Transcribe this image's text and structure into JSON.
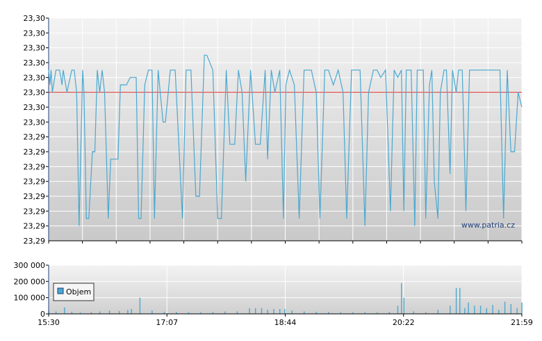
{
  "chart_data": [
    {
      "type": "line",
      "name": "price-chart",
      "ylim": [
        23.28,
        23.31
      ],
      "y_tick_labels": [
        "23,30",
        "23,30",
        "23,30",
        "23,30",
        "23,30",
        "23,30",
        "23,30",
        "23,30",
        "23,29",
        "23,29",
        "23,29",
        "23,29",
        "23,29",
        "23,29",
        "23,29"
      ],
      "reference_line": 23.3,
      "reference_color": "#e03030",
      "line_color": "#4aa8d0",
      "grid": true,
      "watermark": "www.patria.cz",
      "x_time_range": [
        "15:30",
        "21:59"
      ],
      "series": [
        {
          "x": [
            "15:30",
            "15:31",
            "15:32",
            "15:33",
            "15:36",
            "15:39",
            "15:41",
            "15:42",
            "15:45",
            "15:49",
            "15:51",
            "15:53",
            "15:55",
            "15:58",
            "15:59",
            "16:01",
            "16:03",
            "16:06",
            "16:08",
            "16:10",
            "16:12",
            "16:14",
            "16:16",
            "16:19",
            "16:21",
            "16:24",
            "16:27",
            "16:29",
            "16:31",
            "16:34",
            "16:37",
            "16:42",
            "16:44",
            "16:46",
            "16:49",
            "16:52",
            "16:55",
            "16:57",
            "17:00",
            "17:04",
            "17:06",
            "17:10",
            "17:14",
            "17:20",
            "17:23",
            "17:27",
            "17:31",
            "17:34",
            "17:38",
            "17:40",
            "17:45",
            "17:49",
            "17:52",
            "17:56",
            "17:59",
            "18:03",
            "18:06",
            "18:09",
            "18:12",
            "18:16",
            "18:20",
            "18:24",
            "18:28",
            "18:30",
            "18:33",
            "18:36",
            "18:40",
            "18:43",
            "18:45",
            "18:48",
            "18:52",
            "18:56",
            "19:00",
            "19:03",
            "19:06",
            "19:10",
            "19:13",
            "19:17",
            "19:20",
            "19:24",
            "19:28",
            "19:32",
            "19:35",
            "19:39",
            "19:42",
            "19:46",
            "19:50",
            "19:53",
            "19:57",
            "20:00",
            "20:03",
            "20:07",
            "20:11",
            "20:14",
            "20:17",
            "20:20",
            "20:22",
            "20:24",
            "20:26",
            "20:28",
            "20:31",
            "20:33",
            "20:35",
            "20:38",
            "20:40",
            "20:43",
            "20:45",
            "20:47",
            "20:50",
            "20:52",
            "20:55",
            "20:57",
            "21:00",
            "21:02",
            "21:05",
            "21:07",
            "21:10",
            "21:13",
            "21:16",
            "21:18",
            "21:21",
            "21:24",
            "21:27",
            "21:30",
            "21:33",
            "21:36",
            "21:38",
            "21:41",
            "21:44",
            "21:47",
            "21:50",
            "21:53",
            "21:56",
            "21:59"
          ],
          "values": [
            23.303,
            23.301,
            23.303,
            23.3,
            23.303,
            23.303,
            23.301,
            23.303,
            23.3,
            23.303,
            23.303,
            23.3,
            23.282,
            23.303,
            23.3,
            23.283,
            23.283,
            23.292,
            23.292,
            23.303,
            23.3,
            23.303,
            23.3,
            23.283,
            23.291,
            23.291,
            23.291,
            23.301,
            23.301,
            23.301,
            23.302,
            23.302,
            23.283,
            23.283,
            23.301,
            23.303,
            23.303,
            23.283,
            23.303,
            23.296,
            23.296,
            23.303,
            23.303,
            23.283,
            23.303,
            23.303,
            23.286,
            23.286,
            23.305,
            23.305,
            23.303,
            23.283,
            23.283,
            23.303,
            23.293,
            23.293,
            23.303,
            23.3,
            23.288,
            23.303,
            23.293,
            23.293,
            23.303,
            23.291,
            23.303,
            23.3,
            23.303,
            23.283,
            23.301,
            23.303,
            23.301,
            23.283,
            23.303,
            23.303,
            23.303,
            23.3,
            23.283,
            23.303,
            23.303,
            23.301,
            23.303,
            23.3,
            23.283,
            23.303,
            23.303,
            23.303,
            23.282,
            23.3,
            23.303,
            23.303,
            23.302,
            23.303,
            23.284,
            23.303,
            23.302,
            23.303,
            23.284,
            23.303,
            23.303,
            23.303,
            23.282,
            23.303,
            23.303,
            23.303,
            23.283,
            23.301,
            23.303,
            23.288,
            23.283,
            23.3,
            23.303,
            23.303,
            23.289,
            23.303,
            23.3,
            23.303,
            23.303,
            23.284,
            23.303,
            23.303,
            23.303,
            23.303,
            23.303,
            23.303,
            23.303,
            23.303,
            23.303,
            23.303,
            23.283,
            23.303,
            23.292,
            23.292,
            23.3,
            23.298
          ]
        }
      ]
    },
    {
      "type": "bar",
      "name": "volume-chart",
      "ylim": [
        0,
        300000
      ],
      "y_tick_labels": [
        "300 000",
        "200 000",
        "100 000",
        "0"
      ],
      "x_tick_labels": [
        "15:30",
        "17:07",
        "18:44",
        "20:22",
        "21:59"
      ],
      "legend": "Objem",
      "legend_position": "top-left",
      "bar_color": "#4aa8d0",
      "grid": true,
      "series": [
        {
          "name": "Objem",
          "x": [
            "15:30",
            "15:36",
            "15:43",
            "15:49",
            "15:56",
            "16:05",
            "16:12",
            "16:20",
            "16:28",
            "16:35",
            "16:38",
            "16:45",
            "16:55",
            "17:05",
            "17:15",
            "17:25",
            "17:35",
            "17:45",
            "17:55",
            "18:05",
            "18:15",
            "18:20",
            "18:25",
            "18:30",
            "18:35",
            "18:40",
            "18:44",
            "18:50",
            "19:00",
            "19:10",
            "19:20",
            "19:30",
            "19:40",
            "19:50",
            "20:00",
            "20:10",
            "20:17",
            "20:20",
            "20:22",
            "20:30",
            "20:40",
            "20:50",
            "21:00",
            "21:05",
            "21:08",
            "21:12",
            "21:15",
            "21:20",
            "21:25",
            "21:30",
            "21:35",
            "21:40",
            "21:45",
            "21:50",
            "21:55",
            "21:59"
          ],
          "values": [
            20000,
            15000,
            40000,
            12000,
            8000,
            10000,
            15000,
            20000,
            18000,
            25000,
            30000,
            100000,
            20000,
            12000,
            12000,
            10000,
            10000,
            12000,
            15000,
            15000,
            35000,
            35000,
            35000,
            25000,
            30000,
            30000,
            30000,
            20000,
            15000,
            12000,
            12000,
            10000,
            10000,
            10000,
            10000,
            12000,
            50000,
            190000,
            100000,
            15000,
            10000,
            25000,
            50000,
            160000,
            160000,
            35000,
            70000,
            50000,
            50000,
            35000,
            55000,
            25000,
            75000,
            60000,
            35000,
            70000
          ]
        }
      ]
    }
  ]
}
